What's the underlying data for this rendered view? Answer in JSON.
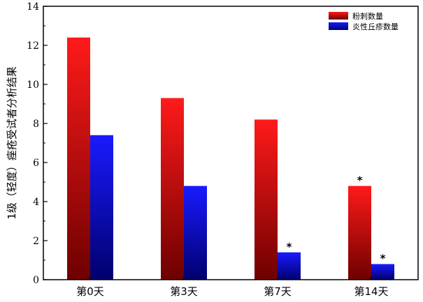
{
  "chart_data": {
    "type": "bar",
    "title": "",
    "xlabel": "",
    "ylabel": "1级（轻度）痤疮受试者分析结果",
    "categories": [
      "第0天",
      "第3天",
      "第7天",
      "第14天"
    ],
    "series": [
      {
        "name": "粉刺数量",
        "values": [
          12.4,
          9.3,
          8.2,
          4.8
        ],
        "color_top": "#ff1a1a",
        "color_bottom": "#6e0000"
      },
      {
        "name": "炎性丘疹数量",
        "values": [
          7.4,
          4.8,
          1.4,
          0.8
        ],
        "color_top": "#1a1aff",
        "color_bottom": "#00006e"
      }
    ],
    "significance": [
      {
        "series": 0,
        "category": 3,
        "mark": "*"
      },
      {
        "series": 1,
        "category": 2,
        "mark": "*"
      },
      {
        "series": 1,
        "category": 3,
        "mark": "*"
      }
    ],
    "ylim": [
      0,
      14
    ],
    "yticks": [
      0,
      2,
      4,
      6,
      8,
      10,
      12,
      14
    ],
    "legend_position": "top-right",
    "grid": false
  }
}
